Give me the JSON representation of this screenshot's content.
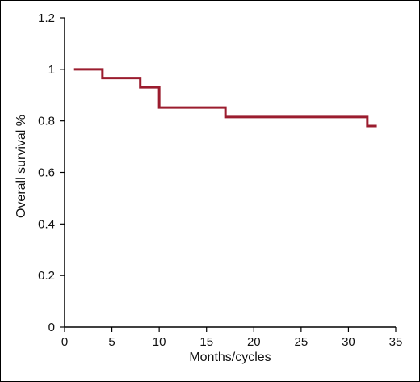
{
  "chart_data": {
    "type": "line",
    "title": "",
    "xlabel": "Months/cycles",
    "ylabel": "Overall survival %",
    "xlim": [
      0,
      35
    ],
    "ylim": [
      0,
      1.2
    ],
    "x_ticks": [
      0,
      5,
      10,
      15,
      20,
      25,
      30,
      35
    ],
    "y_ticks": [
      0,
      0.2,
      0.4,
      0.6,
      0.8,
      1,
      1.2
    ],
    "x_tick_labels": [
      "0",
      "5",
      "10",
      "15",
      "20",
      "25",
      "30",
      "35"
    ],
    "y_tick_labels": [
      "0",
      "0.2",
      "0.4",
      "0.6",
      "0.8",
      "1",
      "1.2"
    ],
    "grid": false,
    "legend": "none",
    "line_style": "step",
    "series": [
      {
        "color": "#9b1c2e",
        "x": [
          1,
          4,
          8,
          10,
          17,
          32,
          33
        ],
        "y": [
          1.0,
          0.966,
          0.93,
          0.852,
          0.815,
          0.78,
          0.78
        ]
      }
    ]
  }
}
